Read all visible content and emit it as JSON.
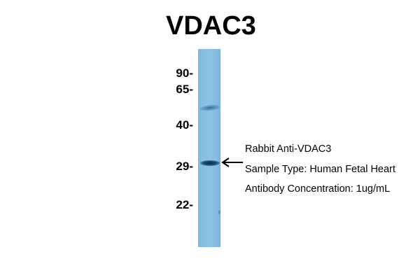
{
  "title": "VDAC3",
  "markers": [
    "90-",
    "65-",
    "40-",
    "29-",
    "22-"
  ],
  "annotation": {
    "line1": "Rabbit Anti-VDAC3",
    "line2": "Sample Type: Human Fetal Heart",
    "line3": "Antibody Concentration: 1ug/mL"
  },
  "colors": {
    "lane": "#8cc2e4",
    "band": "#0d2f4a"
  },
  "icons": {
    "arrow": "arrow-left-icon"
  }
}
